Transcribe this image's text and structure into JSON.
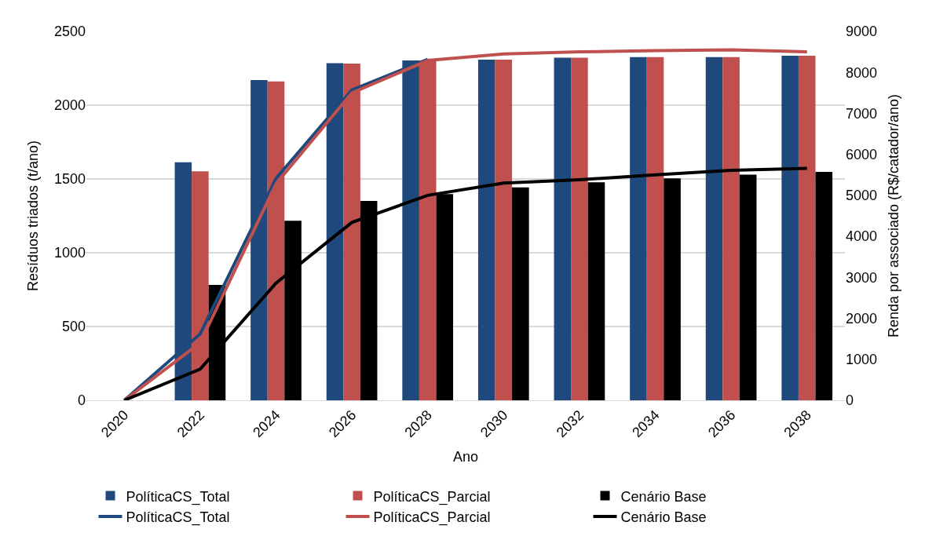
{
  "chart_data": {
    "type": "bar",
    "xlabel": "Ano",
    "ylabel": "Resíduos triados (t/ano)",
    "y2label": "Renda por associado (R$/catador/ano)",
    "categories": [
      "2020",
      "2022",
      "2024",
      "2026",
      "2028",
      "2030",
      "2032",
      "2034",
      "2036",
      "2038"
    ],
    "series": [
      {
        "name": "PolíticaCS_Total",
        "color": "#1f497d",
        "values": [
          0,
          1613,
          2170,
          2284,
          2303,
          2309,
          2322,
          2326,
          2326,
          2335
        ]
      },
      {
        "name": "PolíticaCS_Parcial",
        "color": "#c0504d",
        "values": [
          0,
          1552,
          2161,
          2282,
          2303,
          2309,
          2322,
          2326,
          2326,
          2335
        ]
      },
      {
        "name": "Cenário Base",
        "color": "#000000",
        "values": [
          0,
          782,
          1217,
          1351,
          1398,
          1443,
          1477,
          1504,
          1529,
          1548
        ]
      },
      {
        "name": "PolíticaCS_Total",
        "type": "line",
        "axis": "y2",
        "color": "#1f497d",
        "values": [
          0,
          1620,
          5410,
          7570,
          8320,
          null,
          null,
          null,
          null,
          null
        ]
      },
      {
        "name": "PolíticaCS_Parcial",
        "type": "line",
        "axis": "y2",
        "color": "#c0504d",
        "values": [
          0,
          1400,
          5280,
          7500,
          8290,
          8450,
          8500,
          8530,
          8550,
          8500
        ]
      },
      {
        "name": "Cenário Base",
        "type": "line",
        "axis": "y2",
        "color": "#000000",
        "values": [
          0,
          760,
          2860,
          4340,
          5000,
          5300,
          5380,
          5500,
          5610,
          5660
        ]
      }
    ],
    "ylim": [
      0,
      2500
    ],
    "yticks": [
      0,
      500,
      1000,
      1500,
      2000,
      2500
    ],
    "y2lim": [
      0,
      9000
    ],
    "y2ticks": [
      0,
      1000,
      2000,
      3000,
      4000,
      5000,
      6000,
      7000,
      8000,
      9000
    ],
    "grid": "y",
    "legend": "bottom",
    "marker": "none",
    "line_style": "solid"
  }
}
